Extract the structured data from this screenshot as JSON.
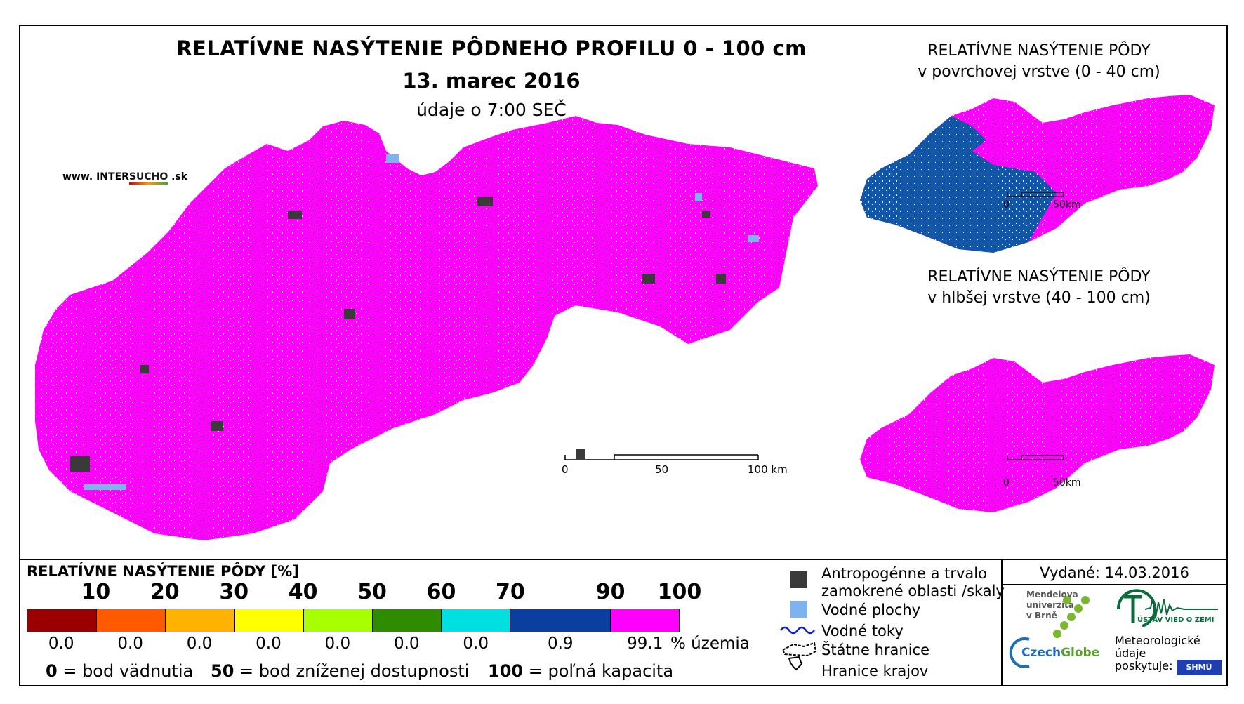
{
  "header": {
    "title": "RELATÍVNE NASÝTENIE PÔDNEHO PROFILU 0 - 100 cm",
    "date": "13. marec 2016",
    "subtitle": "údaje o 7:00 SEČ",
    "url_prefix": "www. INTER",
    "url_highlight": "SUCHO",
    "url_suffix": " .sk"
  },
  "main_map": {
    "scale_labels": [
      "0",
      "50",
      "100 km"
    ]
  },
  "inset_top": {
    "title_line1": "RELATÍVNE NASÝTENIE PÔDY",
    "title_line2": "v povrchovej vrstve (0 - 40 cm)",
    "scale_labels": [
      "0",
      "50km"
    ]
  },
  "inset_bottom": {
    "title_line1": "RELATÍVNE NASÝTENIE PÔDY",
    "title_line2": "v hlbšej vrstve (40 - 100 cm)",
    "scale_labels": [
      "0",
      "50km"
    ]
  },
  "legend": {
    "title": "RELATÍVNE NASÝTENIE PÔDY [%]",
    "ticks": [
      "10",
      "20",
      "30",
      "40",
      "50",
      "60",
      "70",
      "90",
      "100"
    ],
    "classes": [
      {
        "color": "#9b0000",
        "share": "0.0"
      },
      {
        "color": "#ff5a00",
        "share": "0.0"
      },
      {
        "color": "#ffb300",
        "share": "0.0"
      },
      {
        "color": "#ffff00",
        "share": "0.0"
      },
      {
        "color": "#a8ff00",
        "share": "0.0"
      },
      {
        "color": "#2f8c00",
        "share": "0.0"
      },
      {
        "color": "#00e0e0",
        "share": "0.0"
      },
      {
        "color": "#0a3fa0",
        "share": "0.9"
      },
      {
        "color": "#ff00ff",
        "share": "99.1"
      }
    ],
    "share_unit": "% územia",
    "foot": [
      {
        "value": "0",
        "text": " = bod vädnutia"
      },
      {
        "value": "50",
        "text": " = bod zníženej dostupnosti"
      },
      {
        "value": "100",
        "text": " = poľná kapacita"
      }
    ]
  },
  "symbols": {
    "anthropogenic_line1": "Antropogénne a trvalo",
    "anthropogenic_line2": "zamokrené oblasti /skaly",
    "water_bodies": "Vodné plochy",
    "rivers": "Vodné toky",
    "state_border": "Štátne hranice",
    "region_border": "Hranice krajov",
    "colors": {
      "anthropogenic": "#3a3a3a",
      "water": "#7fb3f0",
      "river": "#1020d0"
    }
  },
  "credits": {
    "issued": "Vydané: 14.03.2016",
    "mendel_line1": "Mendelova",
    "mendel_line2": "univerzita",
    "mendel_line3": "v Brně",
    "czechglobe_a": "Czech",
    "czechglobe_b": "Globe",
    "institute": "ÚSTAV VIED O ZEMI",
    "meteo_line1": "Meteorologické",
    "meteo_line2": "údaje",
    "meteo_line3": "poskytuje:",
    "shmu": "SHMÚ"
  }
}
